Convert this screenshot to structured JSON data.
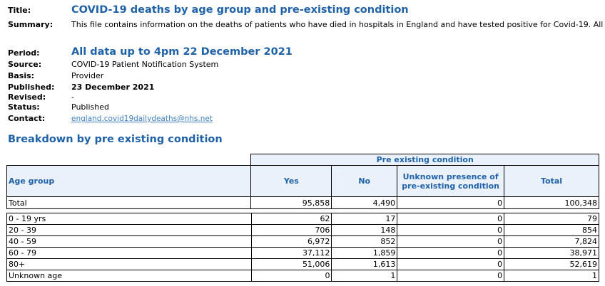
{
  "meta": {
    "title_label": "Title:",
    "title": "COVID-19 deaths by age group and pre-existing condition",
    "summary_label": "Summary:",
    "summary": "This file contains information on the deaths of patients who have died in hospitals in England and have tested positive for Covid-19. All",
    "period_label": "Period:",
    "period": "All data up to 4pm 22 December 2021",
    "source_label": "Source:",
    "source": "COVID-19 Patient Notification System",
    "basis_label": "Basis:",
    "basis": "Provider",
    "published_label": "Published:",
    "published": "23 December 2021",
    "revised_label": "Revised:",
    "revised": "-",
    "status_label": "Status:",
    "status": "Published",
    "contact_label": "Contact:",
    "contact": "england.covid19dailydeaths@nhs.net"
  },
  "section_title": "Breakdown by pre existing condition",
  "table": {
    "group_header": "Pre existing condition",
    "col_age": "Age group",
    "col_yes": "Yes",
    "col_no": "No",
    "col_unknown_1": "Unknown presence of",
    "col_unknown_2": "pre-existing condition",
    "col_total": "Total",
    "total_row": {
      "label": "Total",
      "yes": "95,858",
      "no": "4,490",
      "unknown": "0",
      "total": "100,348"
    },
    "rows": [
      {
        "label": "0 - 19 yrs",
        "yes": "62",
        "no": "17",
        "unknown": "0",
        "total": "79"
      },
      {
        "label": "20 - 39",
        "yes": "706",
        "no": "148",
        "unknown": "0",
        "total": "854"
      },
      {
        "label": "40 - 59",
        "yes": "6,972",
        "no": "852",
        "unknown": "0",
        "total": "7,824"
      },
      {
        "label": "60 - 79",
        "yes": "37,112",
        "no": "1,859",
        "unknown": "0",
        "total": "38,971"
      },
      {
        "label": "80+",
        "yes": "51,006",
        "no": "1,613",
        "unknown": "0",
        "total": "52,619"
      },
      {
        "label": "Unknown age",
        "yes": "0",
        "no": "1",
        "unknown": "0",
        "total": "1"
      }
    ]
  }
}
